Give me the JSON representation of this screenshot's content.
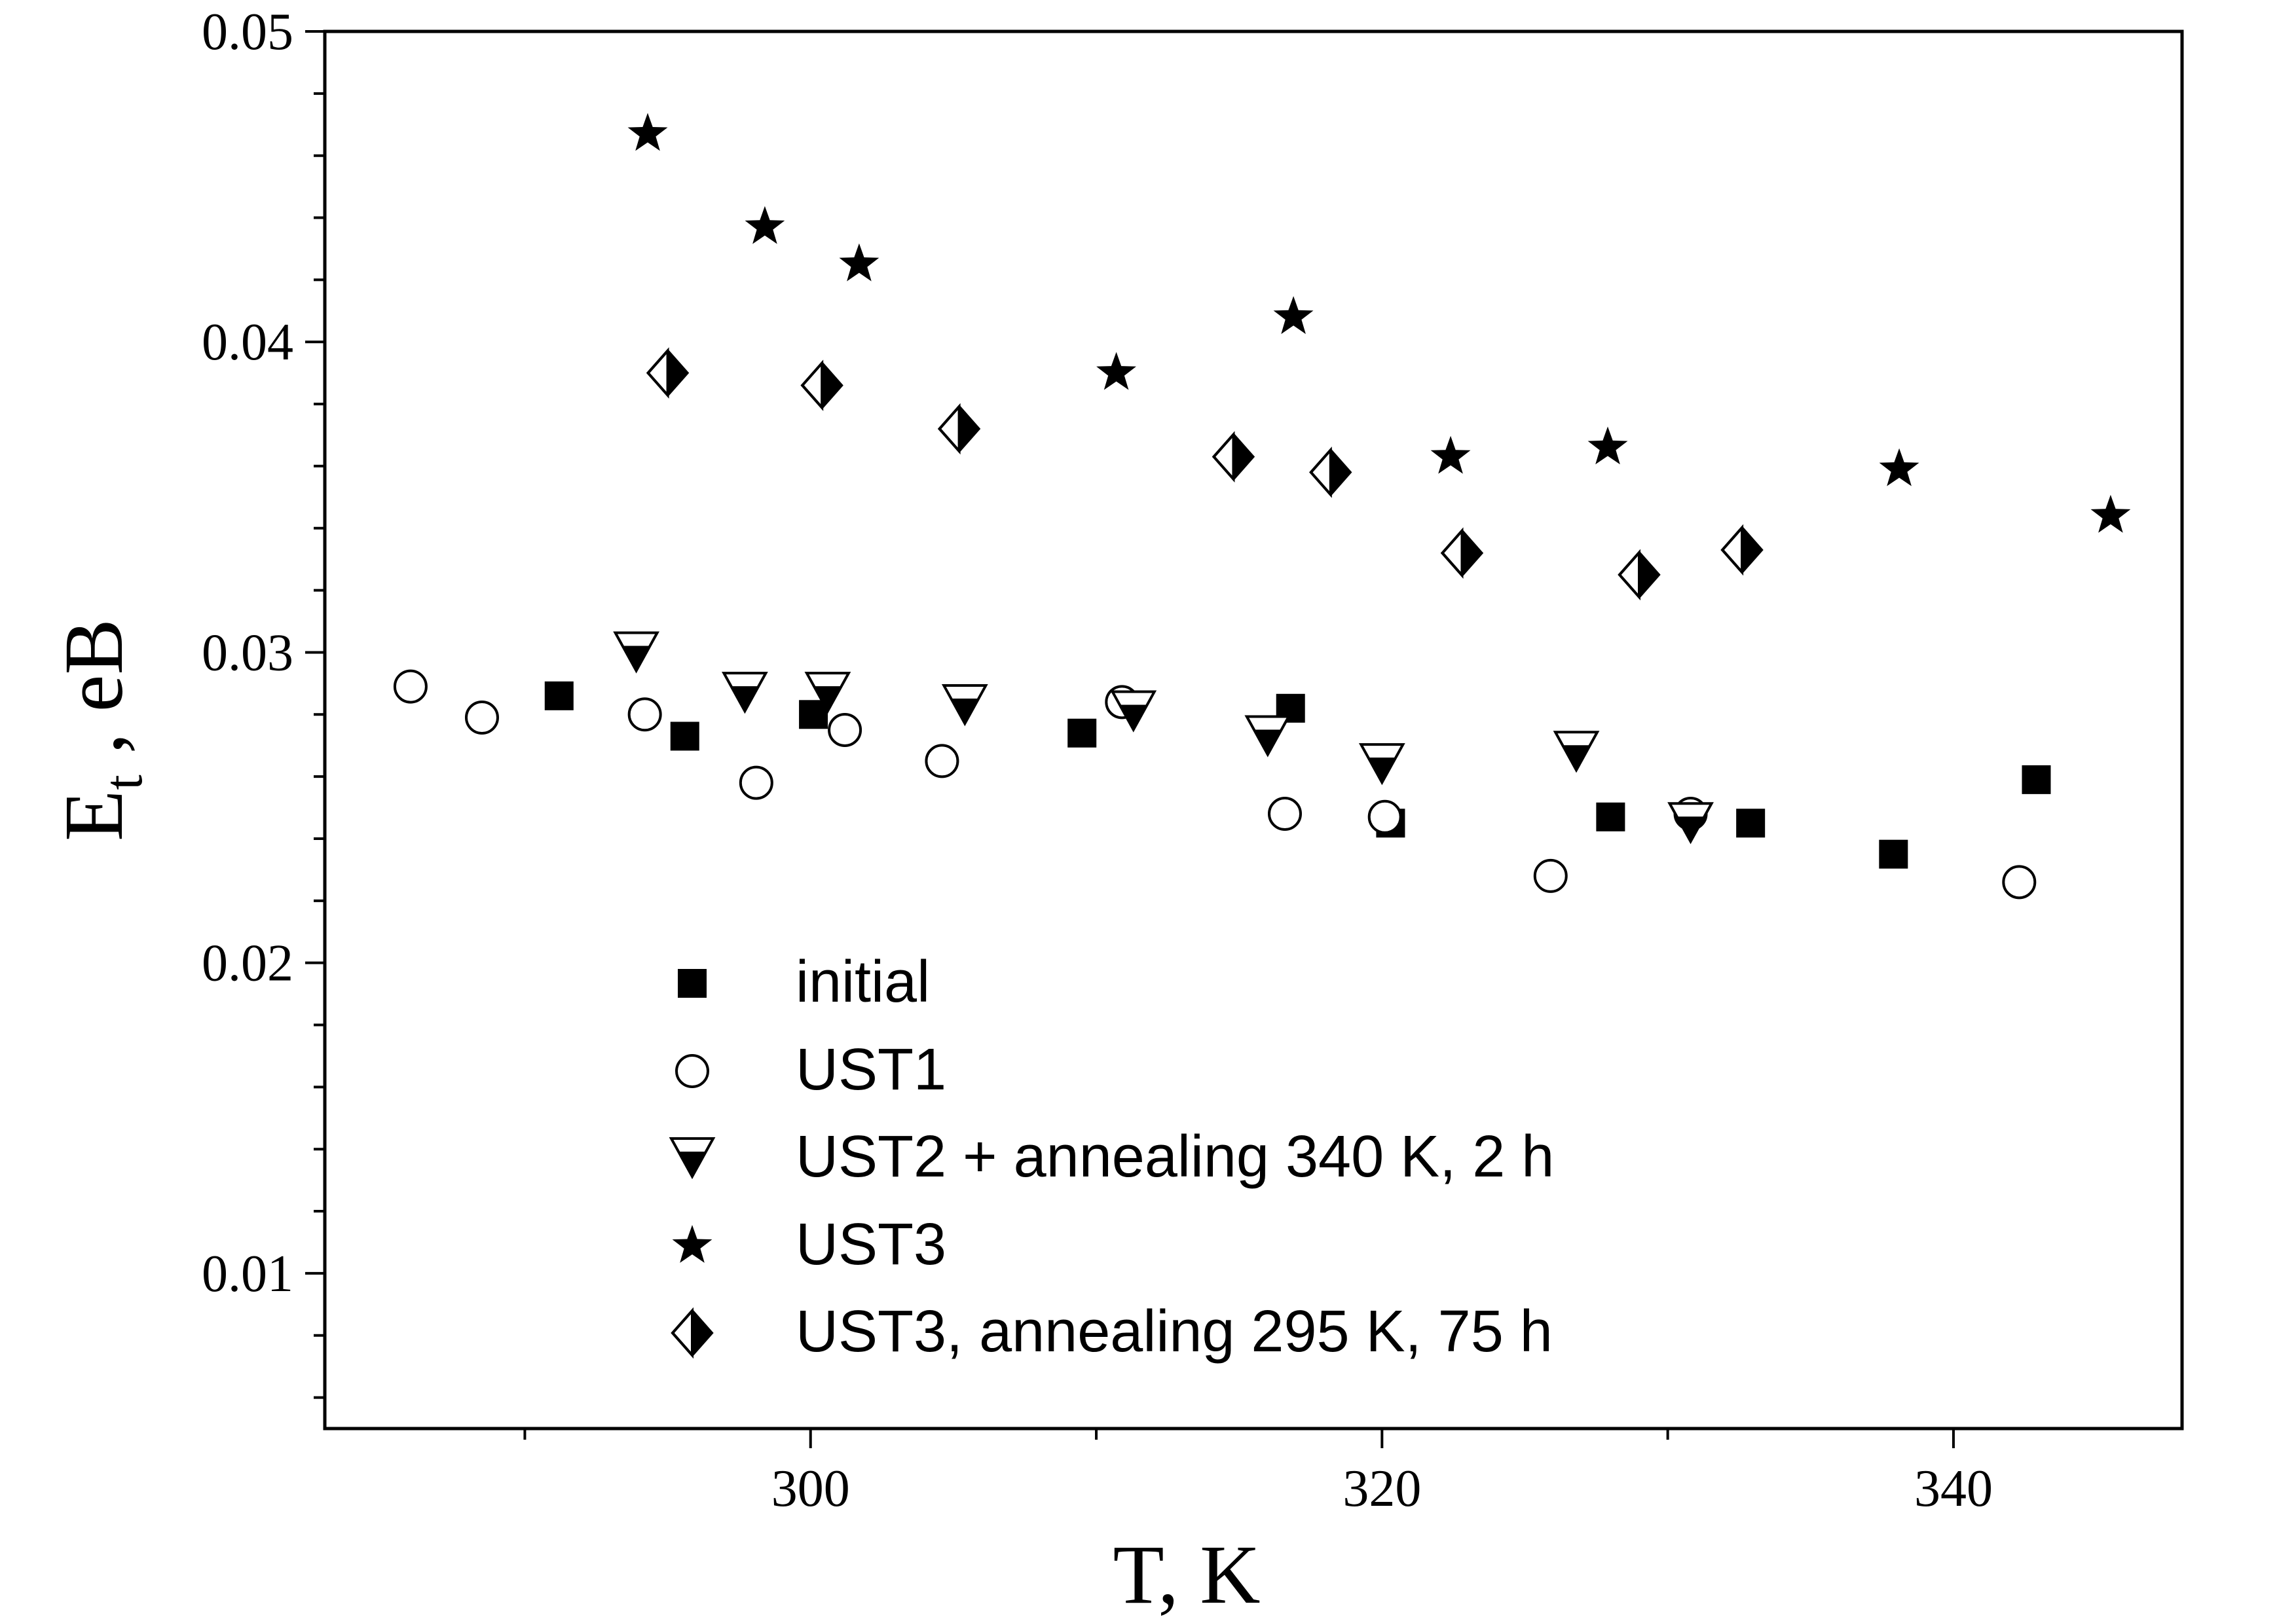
{
  "chart_data": {
    "type": "scatter",
    "xlabel": "T, K",
    "ylabel_main": "E",
    "ylabel_sub": "t",
    "ylabel_rest": " , eB",
    "xlim": [
      283,
      348
    ],
    "ylim": [
      0.005,
      0.05
    ],
    "xticks": [
      300,
      320,
      340
    ],
    "xtick_labels": [
      "300",
      "320",
      "340"
    ],
    "xminor": [
      290,
      310,
      330
    ],
    "yticks": [
      0.01,
      0.02,
      0.03,
      0.04,
      0.05
    ],
    "ytick_labels": [
      "0.01",
      "0.02",
      "0.03",
      "0.04",
      "0.05"
    ],
    "yminor_step": 0.002,
    "grid": false,
    "legend_position": "bottom-center",
    "series": [
      {
        "name": "initial",
        "marker": "filled-square",
        "points": [
          [
            291.2,
            0.0286
          ],
          [
            295.6,
            0.0273
          ],
          [
            300.1,
            0.028
          ],
          [
            309.5,
            0.0274
          ],
          [
            316.8,
            0.0282
          ],
          [
            320.3,
            0.0245
          ],
          [
            328.0,
            0.0247
          ],
          [
            332.9,
            0.0245
          ],
          [
            337.9,
            0.0235
          ],
          [
            342.9,
            0.0259
          ]
        ]
      },
      {
        "name": "UST1",
        "marker": "open-circle",
        "points": [
          [
            286.0,
            0.0289
          ],
          [
            288.5,
            0.0279
          ],
          [
            294.2,
            0.028
          ],
          [
            298.1,
            0.0258
          ],
          [
            301.2,
            0.0275
          ],
          [
            304.6,
            0.0265
          ],
          [
            310.9,
            0.0284
          ],
          [
            316.6,
            0.0248
          ],
          [
            320.1,
            0.0247
          ],
          [
            325.9,
            0.0228
          ],
          [
            330.8,
            0.0248
          ],
          [
            342.3,
            0.0226
          ]
        ]
      },
      {
        "name": "UST2 + annealing 340 K, 2 h",
        "marker": "half-triangle",
        "points": [
          [
            293.9,
            0.03
          ],
          [
            297.7,
            0.0287
          ],
          [
            300.6,
            0.0287
          ],
          [
            305.4,
            0.0283
          ],
          [
            311.3,
            0.0281
          ],
          [
            316.0,
            0.0273
          ],
          [
            320.0,
            0.0264
          ],
          [
            326.8,
            0.0268
          ],
          [
            330.8,
            0.0245
          ]
        ]
      },
      {
        "name": "UST3",
        "marker": "star",
        "points": [
          [
            294.3,
            0.0467
          ],
          [
            298.4,
            0.0437
          ],
          [
            301.7,
            0.0425
          ],
          [
            310.7,
            0.039
          ],
          [
            316.9,
            0.0408
          ],
          [
            322.4,
            0.0363
          ],
          [
            327.9,
            0.0366
          ],
          [
            338.1,
            0.0359
          ],
          [
            345.5,
            0.0344
          ]
        ]
      },
      {
        "name": "UST3, annealing 295 K, 75 h",
        "marker": "half-diamond",
        "points": [
          [
            295.0,
            0.039
          ],
          [
            300.4,
            0.0386
          ],
          [
            305.2,
            0.0372
          ],
          [
            314.8,
            0.0363
          ],
          [
            318.2,
            0.0358
          ],
          [
            322.8,
            0.0332
          ],
          [
            329.0,
            0.0325
          ],
          [
            332.6,
            0.0333
          ]
        ]
      }
    ]
  }
}
